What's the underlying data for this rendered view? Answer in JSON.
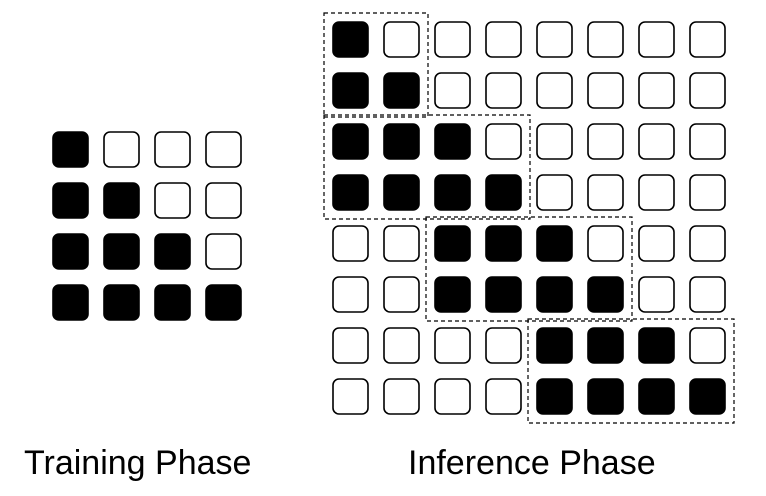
{
  "training": {
    "caption": "Training Phase",
    "grid": [
      [
        1,
        0,
        0,
        0
      ],
      [
        1,
        1,
        0,
        0
      ],
      [
        1,
        1,
        1,
        0
      ],
      [
        1,
        1,
        1,
        1
      ]
    ]
  },
  "inference": {
    "caption": "Inference Phase",
    "grid": [
      [
        1,
        0,
        0,
        0,
        0,
        0,
        0,
        0
      ],
      [
        1,
        1,
        0,
        0,
        0,
        0,
        0,
        0
      ],
      [
        1,
        1,
        1,
        0,
        0,
        0,
        0,
        0
      ],
      [
        1,
        1,
        1,
        1,
        0,
        0,
        0,
        0
      ],
      [
        0,
        0,
        1,
        1,
        1,
        0,
        0,
        0
      ],
      [
        0,
        0,
        1,
        1,
        1,
        1,
        0,
        0
      ],
      [
        0,
        0,
        0,
        0,
        1,
        1,
        1,
        0
      ],
      [
        0,
        0,
        0,
        0,
        1,
        1,
        1,
        1
      ]
    ],
    "blocks": [
      {
        "row": 0,
        "col": 0,
        "rows": 2,
        "cols": 2
      },
      {
        "row": 2,
        "col": 0,
        "rows": 2,
        "cols": 4
      },
      {
        "row": 4,
        "col": 2,
        "rows": 2,
        "cols": 4
      },
      {
        "row": 6,
        "col": 4,
        "rows": 2,
        "cols": 4
      }
    ]
  },
  "colors": {
    "filled": "#000000",
    "empty": "#ffffff",
    "stroke": "#000000"
  }
}
